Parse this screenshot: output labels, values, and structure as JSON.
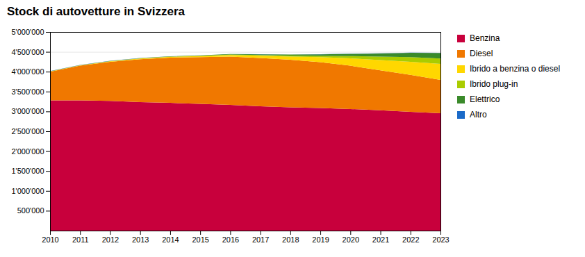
{
  "chart_data": {
    "type": "area",
    "title": "Stock di autovetture in Svizzera",
    "stacked": true,
    "x": [
      2010,
      2011,
      2012,
      2013,
      2014,
      2015,
      2016,
      2017,
      2018,
      2019,
      2020,
      2021,
      2022,
      2023
    ],
    "xlim": [
      2010,
      2023
    ],
    "xticks": [
      2010,
      2011,
      2012,
      2013,
      2014,
      2015,
      2016,
      2017,
      2018,
      2019,
      2020,
      2021,
      2022,
      2023
    ],
    "ylim": [
      0,
      5000000
    ],
    "yticks": [
      {
        "value": 500000,
        "label": "500'000"
      },
      {
        "value": 1000000,
        "label": "1'000'000"
      },
      {
        "value": 1500000,
        "label": "1'500'000"
      },
      {
        "value": 2000000,
        "label": "2'000'000"
      },
      {
        "value": 2500000,
        "label": "2'500'000"
      },
      {
        "value": 3000000,
        "label": "3'000'000"
      },
      {
        "value": 3500000,
        "label": "3'500'000"
      },
      {
        "value": 4000000,
        "label": "4'000'000"
      },
      {
        "value": 4500000,
        "label": "4'500'000"
      },
      {
        "value": 5000000,
        "label": "5'000'000"
      }
    ],
    "grid": true,
    "legend": "right",
    "series": [
      {
        "name": "Benzina",
        "color": "#C8003C",
        "values": [
          3280000,
          3280000,
          3265000,
          3235000,
          3215000,
          3190000,
          3165000,
          3130000,
          3105000,
          3085000,
          3060000,
          3030000,
          2990000,
          2955000
        ]
      },
      {
        "name": "Diesel",
        "color": "#F07800",
        "values": [
          720000,
          870000,
          985000,
          1080000,
          1140000,
          1175000,
          1215000,
          1215000,
          1195000,
          1155000,
          1090000,
          1005000,
          930000,
          840000
        ]
      },
      {
        "name": "Ibrido a benzina o diesel",
        "color": "#FFD700",
        "values": [
          8000,
          10000,
          13000,
          16000,
          20000,
          26000,
          38000,
          55000,
          80000,
          125000,
          185000,
          255000,
          330000,
          400000
        ]
      },
      {
        "name": "Ibrido plug-in",
        "color": "#AACC00",
        "values": [
          1000,
          2000,
          3000,
          4000,
          5000,
          8000,
          12000,
          17000,
          24000,
          34000,
          58000,
          88000,
          115000,
          135000
        ]
      },
      {
        "name": "Elettrico",
        "color": "#3A8A2A",
        "values": [
          2000,
          3000,
          4000,
          5000,
          6000,
          9000,
          13000,
          18000,
          26000,
          38000,
          57000,
          82000,
          112000,
          140000
        ]
      },
      {
        "name": "Altro",
        "color": "#1B6AC8",
        "values": [
          4000,
          4000,
          4000,
          4000,
          4000,
          4000,
          4000,
          4000,
          4000,
          4000,
          4000,
          4000,
          4000,
          4000
        ]
      }
    ]
  }
}
